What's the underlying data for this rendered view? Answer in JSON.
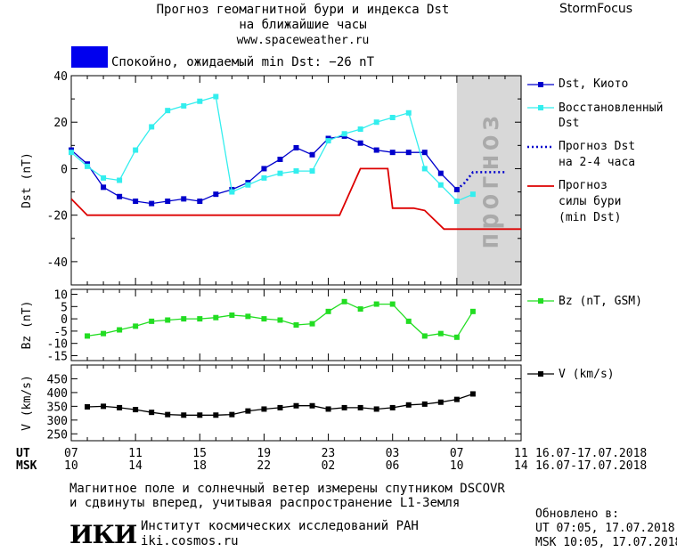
{
  "header": {
    "title_line1": "Прогноз геомагнитной бури и индекса Dst",
    "title_line2": "на ближайшие часы",
    "url": "www.spaceweather.ru",
    "brand": "StormFocus",
    "status_text": "Спокойно, ожидаемый min Dst: −26 nT",
    "status_color": "#0000ee"
  },
  "chart_data": [
    {
      "type": "line",
      "ylabel": "Dst (nT)",
      "ylim": [
        -50,
        40
      ],
      "yticks": [
        40,
        20,
        0,
        -20,
        -40
      ],
      "xlim": [
        7,
        35
      ],
      "shade_label": "прогноз",
      "shade_range": [
        31,
        35
      ],
      "series": [
        {
          "name": "Dst, Киото",
          "color": "#0000cc",
          "marker": "square",
          "x": [
            7,
            8,
            9,
            10,
            11,
            12,
            13,
            14,
            15,
            16,
            17,
            18,
            19,
            20,
            21,
            22,
            23,
            24,
            25,
            26,
            27,
            28,
            29,
            30,
            31
          ],
          "y": [
            8,
            2,
            -8,
            -12,
            -14,
            -15,
            -14,
            -13,
            -14,
            -11,
            -9,
            -6,
            0,
            4,
            9,
            6,
            13,
            14,
            11,
            8,
            7,
            7,
            7,
            -2,
            -9
          ]
        },
        {
          "name": "Восстановленный Dst",
          "color": "#33eeee",
          "marker": "square",
          "x": [
            7,
            8,
            9,
            10,
            11,
            12,
            13,
            14,
            15,
            16,
            17,
            18,
            19,
            20,
            21,
            22,
            23,
            24,
            25,
            26,
            27,
            28,
            29,
            30,
            31,
            32
          ],
          "y": [
            7,
            1,
            -4,
            -5,
            8,
            18,
            25,
            27,
            29,
            31,
            -10,
            -7,
            -4,
            -2,
            -1,
            -1,
            12,
            15,
            17,
            20,
            22,
            24,
            0,
            -7,
            -14,
            -11
          ]
        },
        {
          "name": "Прогноз Dst на 2–4 часа",
          "color": "#0000cc",
          "dotted": true,
          "x": [
            31,
            31.5,
            32,
            33,
            34
          ],
          "y": [
            -9,
            -6,
            -1.5,
            -1.5,
            -1.5
          ]
        },
        {
          "name": "Прогноз силы бури (min Dst)",
          "color": "#dd0000",
          "step": true,
          "x": [
            7,
            8,
            9,
            23,
            23.7,
            25,
            26,
            26.7,
            27,
            28.3,
            29,
            30.2,
            35
          ],
          "y": [
            -13,
            -20,
            -20,
            -20,
            -20,
            0,
            0,
            0,
            -17,
            -17,
            -18,
            -26,
            -26
          ]
        }
      ]
    },
    {
      "type": "line",
      "ylabel": "Bz (nT)",
      "ylim": [
        -17,
        12
      ],
      "yticks": [
        10,
        5,
        0,
        -5,
        -10,
        -15
      ],
      "xlim": [
        7,
        35
      ],
      "series": [
        {
          "name": "Bz (nT, GSM)",
          "color": "#22dd22",
          "marker": "square",
          "x": [
            8,
            9,
            10,
            11,
            12,
            13,
            14,
            15,
            16,
            17,
            18,
            19,
            20,
            21,
            22,
            23,
            24,
            25,
            26,
            27,
            28,
            29,
            30,
            31,
            32
          ],
          "y": [
            -7,
            -6,
            -4.5,
            -3,
            -1,
            -0.5,
            0,
            0,
            0.5,
            1.5,
            1,
            0,
            -0.5,
            -2.5,
            -2,
            3,
            7,
            4,
            6,
            6,
            -1,
            -7,
            -6,
            -7.5,
            3
          ]
        }
      ]
    },
    {
      "type": "line",
      "ylabel": "V (km/s)",
      "ylim": [
        225,
        500
      ],
      "yticks": [
        450,
        400,
        350,
        300,
        250
      ],
      "xlim": [
        7,
        35
      ],
      "series": [
        {
          "name": "V (km/s)",
          "color": "#000000",
          "marker": "square",
          "x": [
            8,
            9,
            10,
            11,
            12,
            13,
            14,
            15,
            16,
            17,
            18,
            19,
            20,
            21,
            22,
            23,
            24,
            25,
            26,
            27,
            28,
            29,
            30,
            31,
            32
          ],
          "y": [
            348,
            350,
            345,
            338,
            328,
            320,
            318,
            318,
            318,
            320,
            333,
            340,
            345,
            352,
            352,
            340,
            345,
            345,
            340,
            345,
            355,
            358,
            365,
            375,
            395
          ]
        }
      ]
    }
  ],
  "xaxis": {
    "ut_label": "UT",
    "msk_label": "MSK",
    "ut_ticks": [
      "07",
      "11",
      "15",
      "19",
      "23",
      "03",
      "07",
      "11"
    ],
    "msk_ticks": [
      "10",
      "14",
      "18",
      "22",
      "02",
      "06",
      "10",
      "14"
    ],
    "date_range_ut": "16.07-17.07.2018",
    "date_range_msk": "16.07-17.07.2018"
  },
  "footer": {
    "note_line1": "Магнитное поле и солнечный ветер измерены спутником DSCOVR",
    "note_line2": "и сдвинуты вперед, учитывая распространение L1-Земля",
    "logo_text": "ИКИ",
    "institute": "Институт космических исследований РАН",
    "institute_url": "iki.cosmos.ru",
    "updated_label": "Обновлено в:",
    "updated_ut": "UT   07:05, 17.07.2018",
    "updated_msk": "MSK 10:05, 17.07.2018"
  },
  "legend": {
    "dst_kyoto": "Dst, Киото",
    "dst_restored_1": "Восстановленный",
    "dst_restored_2": "Dst",
    "forecast_1": "Прогноз Dst",
    "forecast_2": "на 2-4 часа",
    "storm_1": "Прогноз",
    "storm_2": "силы бури",
    "storm_3": "(min Dst)",
    "bz": "Bz (nT, GSM)",
    "v": "V (km/s)"
  }
}
